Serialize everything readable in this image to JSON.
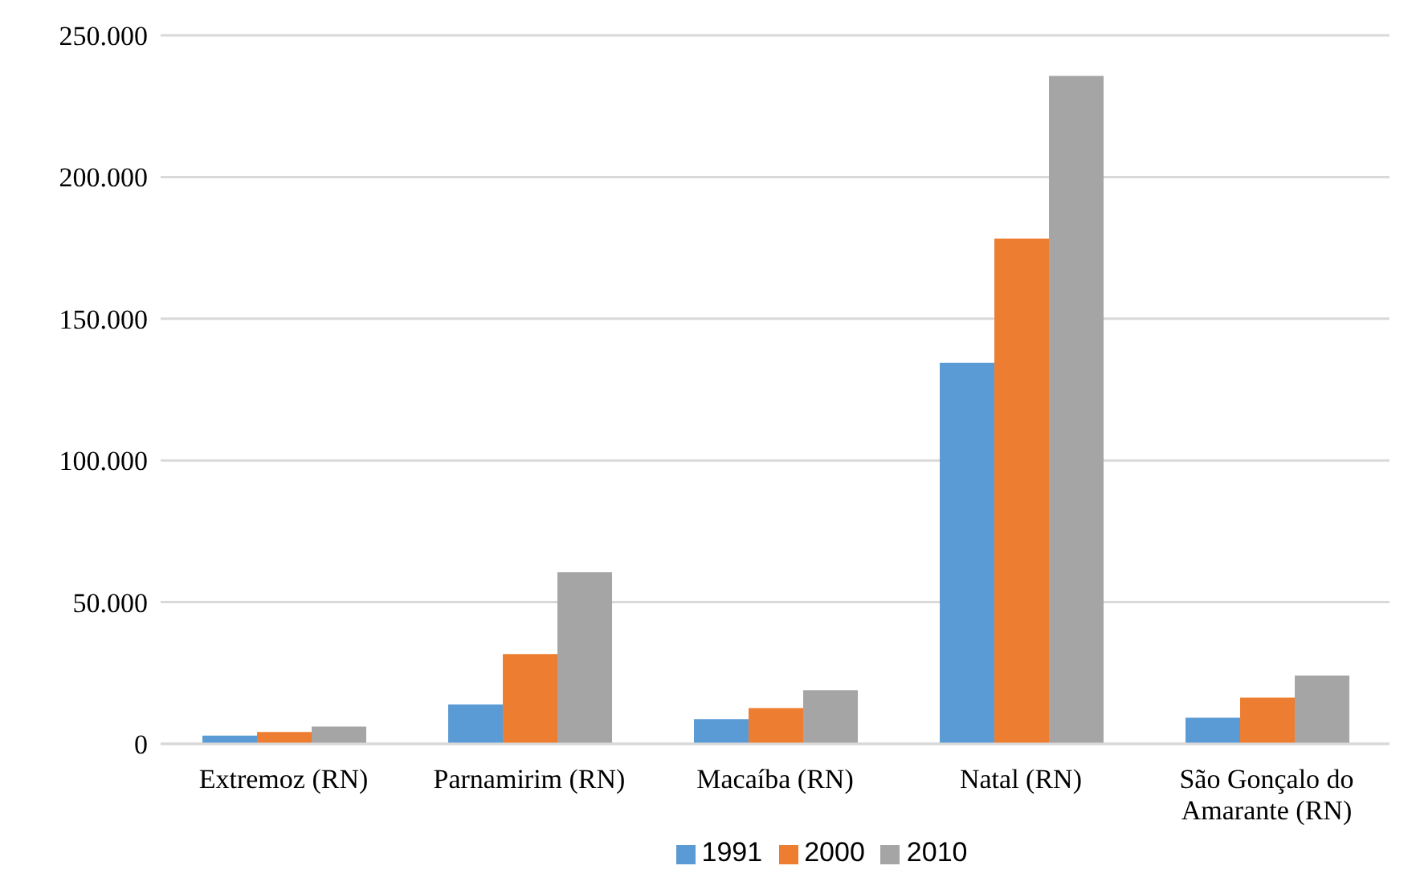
{
  "chart_data": {
    "type": "bar",
    "categories": [
      "Extremoz (RN)",
      "Parnamirim (RN)",
      "Macaíba (RN)",
      "Natal (RN)",
      "São Gonçalo do Amarante (RN)"
    ],
    "series": [
      {
        "name": "1991",
        "color": "#5b9bd5",
        "values": [
          2900,
          13900,
          8700,
          134400,
          9200
        ]
      },
      {
        "name": "2000",
        "color": "#ed7d31",
        "values": [
          4200,
          31700,
          12600,
          178300,
          16300
        ]
      },
      {
        "name": "2010",
        "color": "#a5a5a5",
        "values": [
          6100,
          60600,
          18900,
          235700,
          24100
        ]
      }
    ],
    "ylim": [
      0,
      250000
    ],
    "yticks": [
      {
        "value": 0,
        "label": "0"
      },
      {
        "value": 50000,
        "label": "50.000"
      },
      {
        "value": 100000,
        "label": "100.000"
      },
      {
        "value": 150000,
        "label": "150.000"
      },
      {
        "value": 200000,
        "label": "200.000"
      },
      {
        "value": 250000,
        "label": "250.000"
      }
    ],
    "grid": "y",
    "legend": "bottom"
  }
}
